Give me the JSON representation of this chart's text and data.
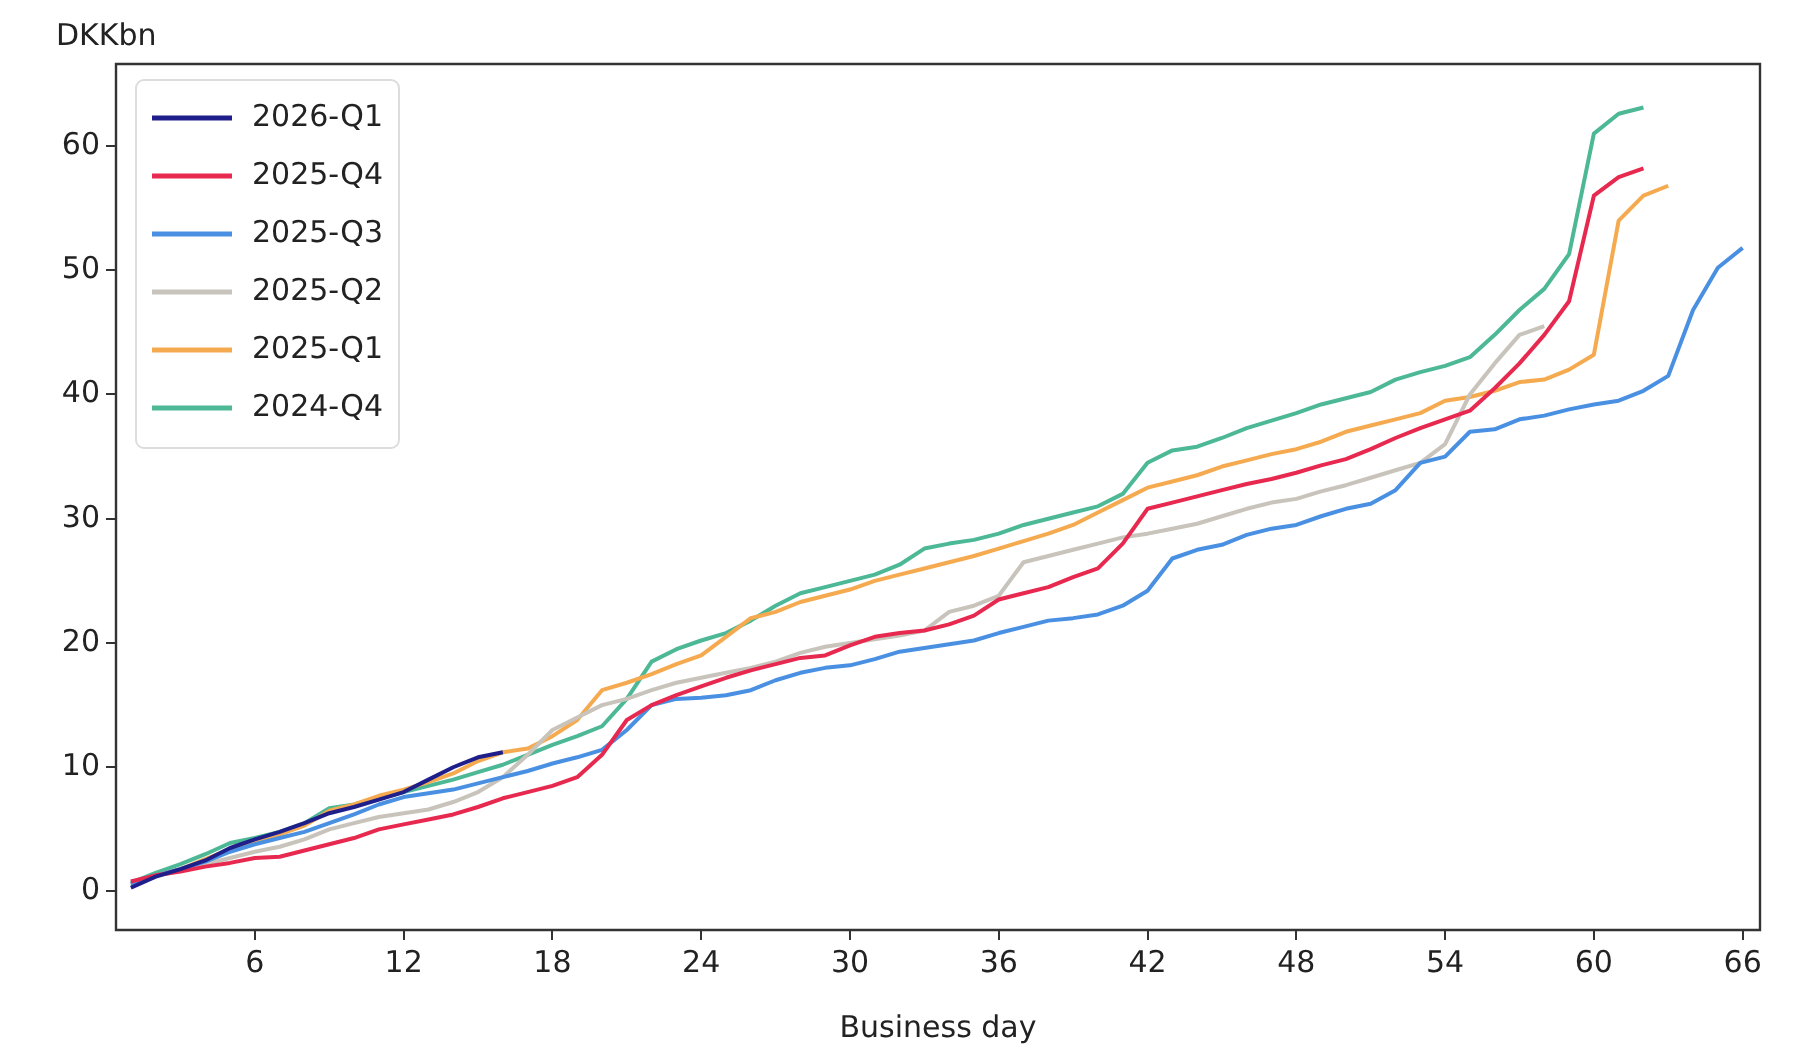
{
  "chart_data": {
    "type": "line",
    "xlabel": "Business day",
    "ylabel": "DKKbn",
    "x": [
      1,
      2,
      3,
      4,
      5,
      6,
      7,
      8,
      9,
      10,
      11,
      12,
      13,
      14,
      15,
      16,
      17,
      18,
      19,
      20,
      21,
      22,
      23,
      24,
      25,
      26,
      27,
      28,
      29,
      30,
      31,
      32,
      33,
      34,
      35,
      36,
      37,
      38,
      39,
      40,
      41,
      42,
      43,
      44,
      45,
      46,
      47,
      48,
      49,
      50,
      51,
      52,
      53,
      54,
      55,
      56,
      57,
      58,
      59,
      60,
      61,
      62,
      63,
      64,
      65,
      66
    ],
    "xlim": [
      0.4,
      66.7
    ],
    "xticks": [
      6,
      12,
      18,
      24,
      30,
      36,
      42,
      48,
      54,
      60,
      66
    ],
    "ylim": [
      -3.1,
      66.6
    ],
    "yticks": [
      0,
      10,
      20,
      30,
      40,
      50,
      60
    ],
    "grid": false,
    "legend": "top left",
    "marker": "none",
    "line_style": "solid",
    "series": [
      {
        "name": "2026-Q1",
        "color": "#1f1f8c",
        "values": [
          0.3,
          1.2,
          1.8,
          2.5,
          3.5,
          4.2,
          4.8,
          5.5,
          6.3,
          6.8,
          7.4,
          8.0,
          9.0,
          10.0,
          10.8,
          11.2,
          null,
          null,
          null,
          null,
          null,
          null,
          null,
          null,
          null,
          null,
          null,
          null,
          null,
          null,
          null,
          null,
          null,
          null,
          null,
          null,
          null,
          null,
          null,
          null,
          null,
          null,
          null,
          null,
          null,
          null,
          null,
          null,
          null,
          null,
          null,
          null,
          null,
          null,
          null,
          null,
          null,
          null,
          null,
          null,
          null,
          null,
          null,
          null,
          null,
          null
        ]
      },
      {
        "name": "2025-Q4",
        "color": "#e8294f",
        "values": [
          0.8,
          1.3,
          1.6,
          2.0,
          2.3,
          2.7,
          2.8,
          3.3,
          3.8,
          4.3,
          5.0,
          5.4,
          5.8,
          6.2,
          6.8,
          7.5,
          8.0,
          8.5,
          9.2,
          11.0,
          13.8,
          15.0,
          15.8,
          16.5,
          17.2,
          17.8,
          18.3,
          18.8,
          19.0,
          19.8,
          20.5,
          20.8,
          21.0,
          21.5,
          22.2,
          23.5,
          24.0,
          24.5,
          25.3,
          26.0,
          28.0,
          30.8,
          31.3,
          31.8,
          32.3,
          32.8,
          33.2,
          33.7,
          34.3,
          34.8,
          35.6,
          36.5,
          37.3,
          38.0,
          38.7,
          40.5,
          42.5,
          44.8,
          47.5,
          56.0,
          57.5,
          58.2,
          null,
          null,
          null,
          null
        ]
      },
      {
        "name": "2025-Q3",
        "color": "#4a90e2",
        "values": [
          0.6,
          1.3,
          1.8,
          2.4,
          3.2,
          3.8,
          4.3,
          4.8,
          5.5,
          6.2,
          7.0,
          7.6,
          7.9,
          8.2,
          8.7,
          9.2,
          9.7,
          10.3,
          10.8,
          11.4,
          13.0,
          15.0,
          15.5,
          15.6,
          15.8,
          16.2,
          17.0,
          17.6,
          18.0,
          18.2,
          18.7,
          19.3,
          19.6,
          19.9,
          20.2,
          20.8,
          21.3,
          21.8,
          22.0,
          22.3,
          23.0,
          24.2,
          26.8,
          27.5,
          27.9,
          28.7,
          29.2,
          29.5,
          30.2,
          30.8,
          31.2,
          32.3,
          34.5,
          35.0,
          37.0,
          37.2,
          38.0,
          38.3,
          38.8,
          39.2,
          39.5,
          40.3,
          41.5,
          46.8,
          50.2,
          51.8
        ]
      },
      {
        "name": "2025-Q2",
        "color": "#c8c3bb",
        "values": [
          0.5,
          1.2,
          1.7,
          2.2,
          2.7,
          3.2,
          3.6,
          4.2,
          5.0,
          5.5,
          6.0,
          6.3,
          6.6,
          7.2,
          8.0,
          9.2,
          11.0,
          13.0,
          14.0,
          15.0,
          15.5,
          16.2,
          16.8,
          17.2,
          17.6,
          18.0,
          18.5,
          19.2,
          19.7,
          20.0,
          20.3,
          20.6,
          21.0,
          22.5,
          23.0,
          23.8,
          26.5,
          27.0,
          27.5,
          28.0,
          28.5,
          28.8,
          29.2,
          29.6,
          30.2,
          30.8,
          31.3,
          31.6,
          32.2,
          32.7,
          33.3,
          33.9,
          34.5,
          36.0,
          40.0,
          42.5,
          44.8,
          45.5,
          null,
          null,
          null,
          null,
          null,
          null,
          null,
          null
        ]
      },
      {
        "name": "2025-Q1",
        "color": "#f5aa50",
        "values": [
          0.6,
          1.3,
          1.8,
          2.6,
          3.4,
          4.0,
          4.6,
          5.3,
          6.5,
          7.0,
          7.7,
          8.2,
          8.8,
          9.5,
          10.5,
          11.2,
          11.5,
          12.5,
          13.8,
          16.2,
          16.8,
          17.5,
          18.3,
          19.0,
          20.5,
          22.0,
          22.5,
          23.3,
          23.8,
          24.3,
          25.0,
          25.5,
          26.0,
          26.5,
          27.0,
          27.6,
          28.2,
          28.8,
          29.5,
          30.5,
          31.5,
          32.5,
          33.0,
          33.5,
          34.2,
          34.7,
          35.2,
          35.6,
          36.2,
          37.0,
          37.5,
          38.0,
          38.5,
          39.5,
          39.8,
          40.3,
          41.0,
          41.2,
          42.0,
          43.2,
          54.0,
          56.0,
          56.8,
          null,
          null,
          null
        ]
      },
      {
        "name": "2024-Q4",
        "color": "#4db896",
        "values": [
          0.7,
          1.5,
          2.2,
          3.0,
          3.9,
          4.3,
          4.8,
          5.5,
          6.7,
          7.0,
          7.5,
          8.0,
          8.5,
          9.0,
          9.6,
          10.2,
          11.0,
          11.8,
          12.5,
          13.3,
          15.5,
          18.5,
          19.5,
          20.2,
          20.8,
          21.8,
          23.0,
          24.0,
          24.5,
          25.0,
          25.5,
          26.3,
          27.6,
          28.0,
          28.3,
          28.8,
          29.5,
          30.0,
          30.5,
          31.0,
          32.0,
          34.5,
          35.5,
          35.8,
          36.5,
          37.3,
          37.9,
          38.5,
          39.2,
          39.7,
          40.2,
          41.2,
          41.8,
          42.3,
          43.0,
          44.8,
          46.8,
          48.5,
          51.3,
          61.0,
          62.6,
          63.1,
          null,
          null,
          null,
          null
        ]
      }
    ]
  }
}
